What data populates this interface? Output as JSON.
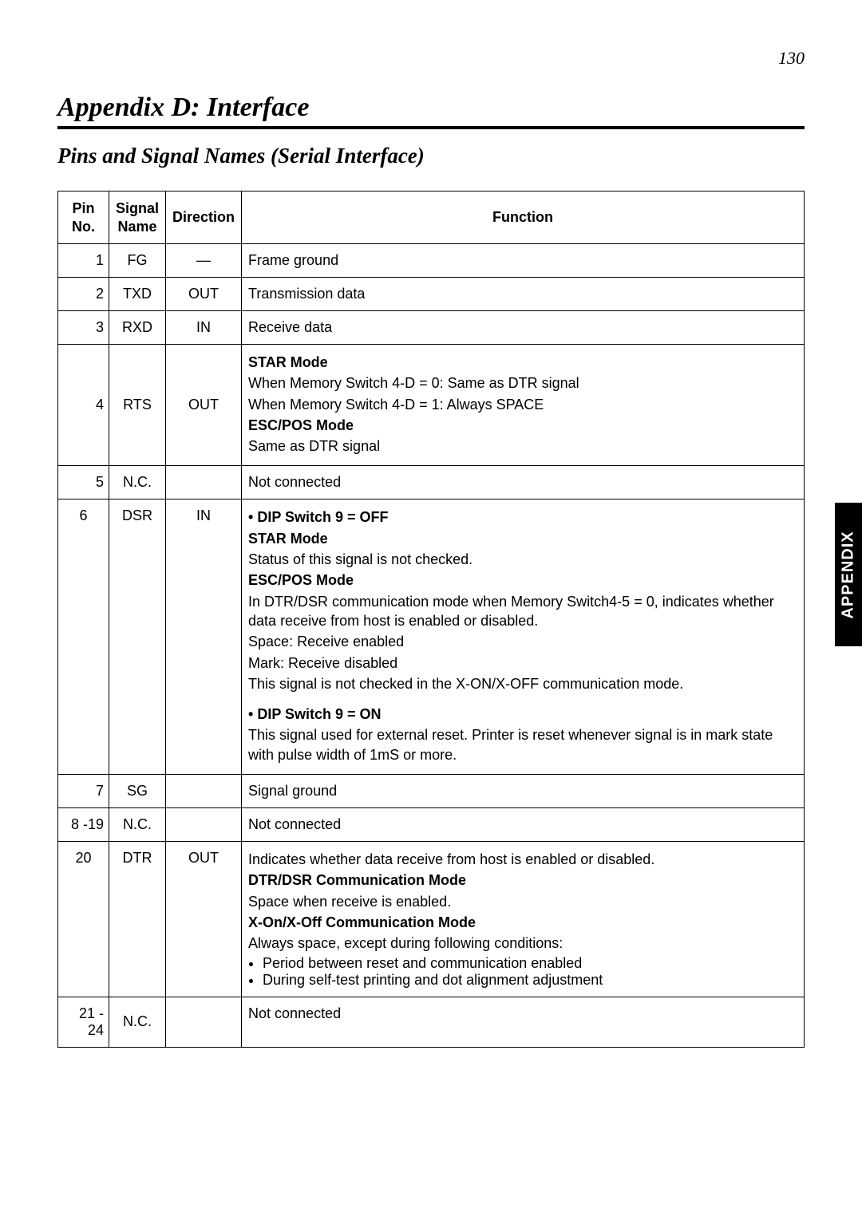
{
  "page_number": "130",
  "appendix_title": "Appendix D:  Interface",
  "section_title": "Pins and Signal Names (Serial Interface)",
  "side_tab": "APPENDIX",
  "table": {
    "headers": {
      "pin": "Pin\nNo.",
      "signal": "Signal\nName",
      "direction": "Direction",
      "function": "Function"
    },
    "rows": {
      "r1": {
        "pin": "1",
        "signal": "FG",
        "direction": "—",
        "func_plain": "Frame ground"
      },
      "r2": {
        "pin": "2",
        "signal": "TXD",
        "direction": "OUT",
        "func_plain": "Transmission data"
      },
      "r3": {
        "pin": "3",
        "signal": "RXD",
        "direction": "IN",
        "func_plain": "Receive data"
      },
      "r4": {
        "pin": "4",
        "signal": "RTS",
        "direction": "OUT",
        "star_label": "STAR Mode",
        "star_l1": "When Memory Switch 4-D = 0: Same as DTR signal",
        "star_l2": "When Memory Switch 4-D = 1: Always SPACE",
        "escpos_label": "ESC/POS Mode",
        "escpos_l1": "Same as DTR signal"
      },
      "r5": {
        "pin": "5",
        "signal": "N.C.",
        "direction": "",
        "func_plain": "Not connected"
      },
      "r6": {
        "pin": "6",
        "signal": "DSR",
        "direction": "IN",
        "off_label": "•  DIP Switch 9 = OFF",
        "off_star_label": "STAR Mode",
        "off_star_l1": "Status of this signal is not checked.",
        "off_escpos_label": "ESC/POS Mode",
        "off_escpos_l1": "In DTR/DSR communication mode when Memory Switch4-5 = 0, indicates whether data receive from host is enabled or disabled.",
        "off_escpos_l2": "Space: Receive enabled",
        "off_escpos_l3": "Mark: Receive disabled",
        "off_escpos_l4": "This signal is not checked in the X-ON/X-OFF communication mode.",
        "on_label": "•  DIP Switch 9 = ON",
        "on_l1": "This signal used for external reset. Printer is reset whenever signal is in mark state with pulse width of 1mS or more."
      },
      "r7": {
        "pin": "7",
        "signal": "SG",
        "direction": "",
        "func_plain": "Signal ground"
      },
      "r8": {
        "pin": "8 -19",
        "signal": "N.C.",
        "direction": "",
        "func_plain": "Not connected"
      },
      "r20": {
        "pin": "20",
        "signal": "DTR",
        "direction": "OUT",
        "l1": "Indicates whether data receive from host is enabled or disabled.",
        "dtr_label": "DTR/DSR Communication Mode",
        "dtr_l1": "Space when receive is enabled.",
        "xon_label": "X-On/X-Off Communication Mode",
        "xon_l1": "Always space, except during following conditions:",
        "xon_b1": "Period between reset and communication enabled",
        "xon_b2": "During self-test printing and dot alignment adjustment"
      },
      "r21": {
        "pin": "21 - 24",
        "signal": "N.C.",
        "direction": "",
        "func_plain": "Not connected"
      }
    }
  }
}
